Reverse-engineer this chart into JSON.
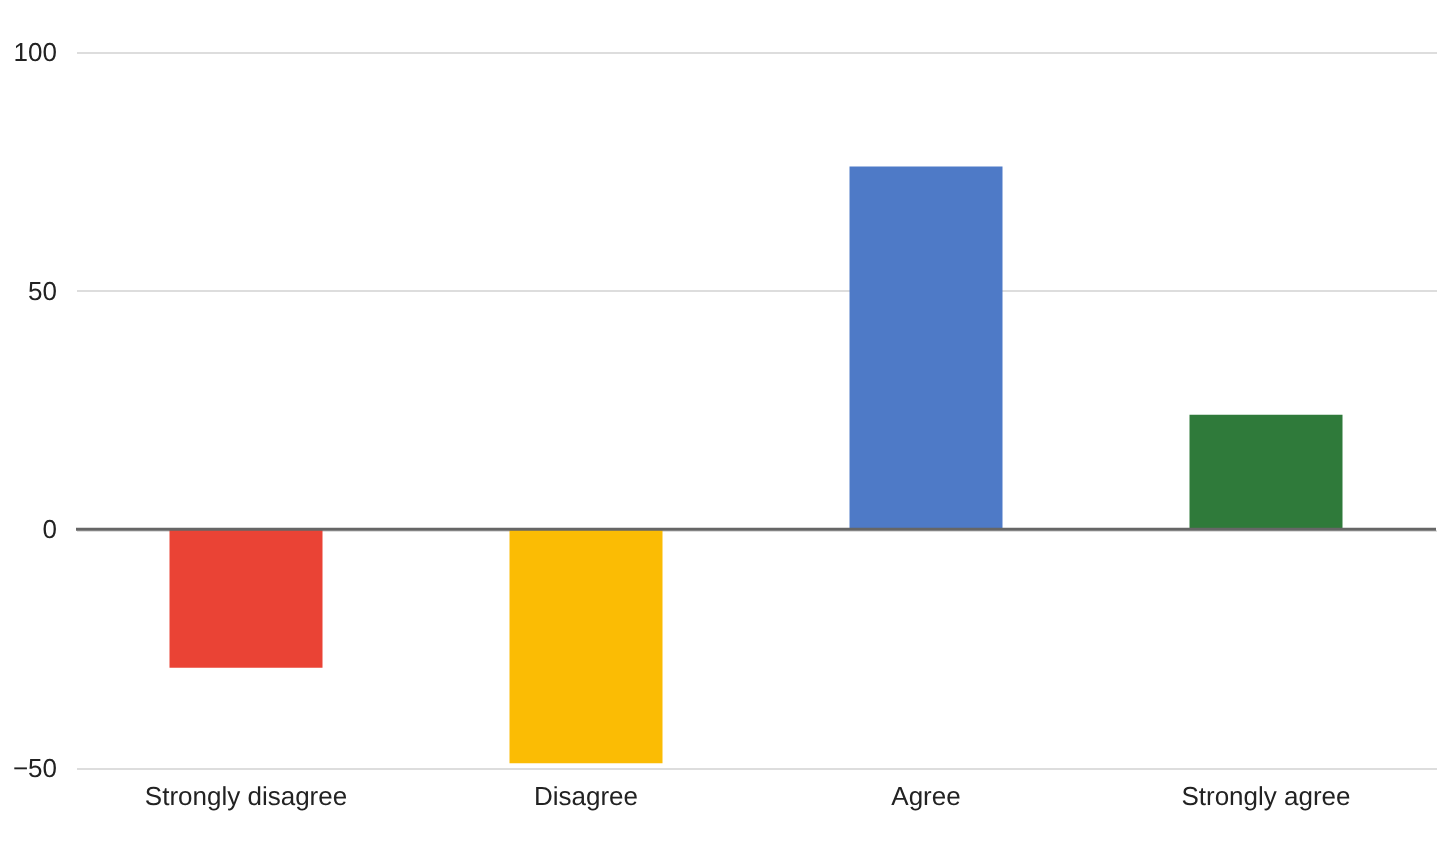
{
  "chart_data": {
    "type": "bar",
    "categories": [
      "Strongly disagree",
      "Disagree",
      "Agree",
      "Strongly agree"
    ],
    "values": [
      -29,
      -49,
      76,
      24
    ],
    "colors": [
      "#ea4335",
      "#fbbc04",
      "#4e7ac7",
      "#2f7a3a"
    ],
    "ylim": [
      -50,
      100
    ],
    "yticks": [
      -50,
      0,
      50,
      100
    ],
    "grid": "y",
    "ref_lines": [
      {
        "axis": "y",
        "value": 0,
        "color": "#666666"
      }
    ]
  }
}
